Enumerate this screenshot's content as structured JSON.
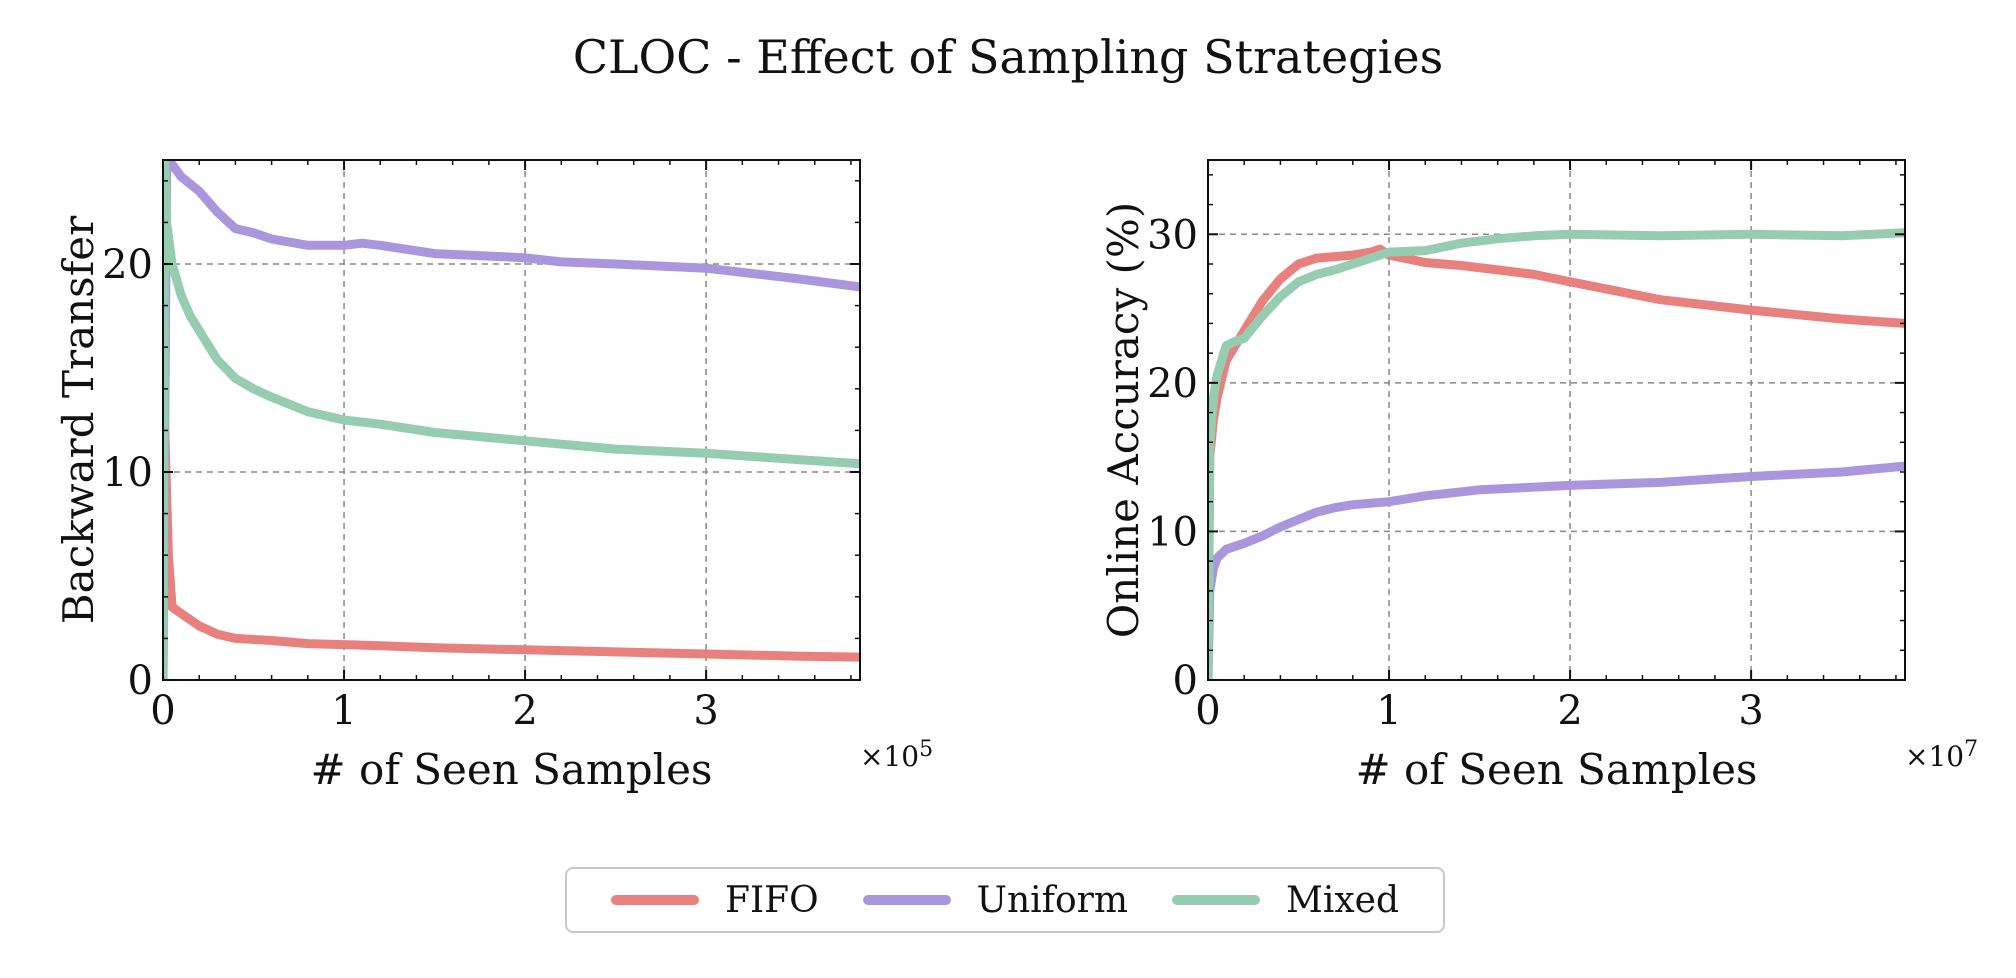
{
  "figure": {
    "title": "CLOC - Effect of Sampling Strategies",
    "legend": [
      {
        "label": "FIFO",
        "color": "#e8807e"
      },
      {
        "label": "Uniform",
        "color": "#a996dc"
      },
      {
        "label": "Mixed",
        "color": "#96cdb0"
      }
    ]
  },
  "chart_data": [
    {
      "type": "line",
      "title": "",
      "xlabel": "# of Seen Samples",
      "ylabel": "Backward Transfer",
      "x_multiplier": "×10^5",
      "x_multiplier_base": "×10",
      "x_multiplier_exp": "5",
      "xlim": [
        0,
        3.85
      ],
      "ylim": [
        0,
        25
      ],
      "xticks": [
        0,
        1,
        2,
        3
      ],
      "yticks": [
        0,
        10,
        20
      ],
      "grid": true,
      "series": [
        {
          "name": "FIFO",
          "color": "#e8807e",
          "x": [
            0,
            0.01,
            0.03,
            0.05,
            0.1,
            0.2,
            0.3,
            0.4,
            0.6,
            0.8,
            1.0,
            1.2,
            1.5,
            2.0,
            2.5,
            3.0,
            3.5,
            3.85
          ],
          "y": [
            0,
            12,
            6,
            3.5,
            3.2,
            2.6,
            2.2,
            2.0,
            1.9,
            1.75,
            1.7,
            1.65,
            1.55,
            1.45,
            1.35,
            1.25,
            1.15,
            1.1
          ]
        },
        {
          "name": "Uniform",
          "color": "#a996dc",
          "x": [
            0,
            0.02,
            0.05,
            0.1,
            0.2,
            0.3,
            0.4,
            0.5,
            0.6,
            0.8,
            1.0,
            1.1,
            1.2,
            1.5,
            2.0,
            2.2,
            2.5,
            3.0,
            3.5,
            3.85
          ],
          "y": [
            0,
            24.5,
            24.8,
            24.2,
            23.5,
            22.5,
            21.7,
            21.5,
            21.2,
            20.9,
            20.9,
            21.0,
            20.9,
            20.5,
            20.3,
            20.1,
            20.0,
            19.8,
            19.3,
            18.9
          ]
        },
        {
          "name": "Mixed",
          "color": "#96cdb0",
          "x": [
            0,
            0.01,
            0.02,
            0.05,
            0.1,
            0.15,
            0.2,
            0.3,
            0.4,
            0.5,
            0.6,
            0.8,
            1.0,
            1.2,
            1.5,
            2.0,
            2.5,
            3.0,
            3.5,
            3.85
          ],
          "y": [
            0,
            25,
            22,
            20,
            18.5,
            17.5,
            16.8,
            15.4,
            14.5,
            14.0,
            13.6,
            12.9,
            12.5,
            12.3,
            11.9,
            11.5,
            11.1,
            10.9,
            10.6,
            10.4
          ]
        }
      ]
    },
    {
      "type": "line",
      "title": "",
      "xlabel": "# of Seen Samples",
      "ylabel": "Online Accuracy (%)",
      "x_multiplier": "×10^7",
      "x_multiplier_base": "×10",
      "x_multiplier_exp": "7",
      "xlim": [
        0,
        3.85
      ],
      "ylim": [
        0,
        35
      ],
      "xticks": [
        0,
        1,
        2,
        3
      ],
      "yticks": [
        0,
        10,
        20,
        30
      ],
      "grid": true,
      "series": [
        {
          "name": "FIFO",
          "color": "#e8807e",
          "x": [
            0,
            0.01,
            0.03,
            0.05,
            0.1,
            0.15,
            0.2,
            0.3,
            0.4,
            0.5,
            0.6,
            0.7,
            0.8,
            0.9,
            0.95,
            1.0,
            1.2,
            1.4,
            1.6,
            1.8,
            2.0,
            2.5,
            3.0,
            3.5,
            3.85
          ],
          "y": [
            0,
            15,
            17.5,
            19,
            21.5,
            22.5,
            23.5,
            25.5,
            27,
            28,
            28.4,
            28.5,
            28.6,
            28.8,
            29,
            28.6,
            28.1,
            27.9,
            27.6,
            27.3,
            26.8,
            25.6,
            24.9,
            24.3,
            24.0
          ]
        },
        {
          "name": "Uniform",
          "color": "#a996dc",
          "x": [
            0,
            0.01,
            0.03,
            0.05,
            0.1,
            0.2,
            0.3,
            0.4,
            0.5,
            0.6,
            0.7,
            0.8,
            1.0,
            1.2,
            1.5,
            2.0,
            2.5,
            3.0,
            3.5,
            3.85
          ],
          "y": [
            0,
            6,
            7.5,
            8.2,
            8.8,
            9.2,
            9.7,
            10.3,
            10.8,
            11.3,
            11.6,
            11.8,
            12.0,
            12.4,
            12.8,
            13.1,
            13.3,
            13.7,
            14.0,
            14.4
          ]
        },
        {
          "name": "Mixed",
          "color": "#96cdb0",
          "x": [
            0,
            0.01,
            0.03,
            0.05,
            0.1,
            0.15,
            0.2,
            0.3,
            0.4,
            0.5,
            0.6,
            0.7,
            0.8,
            0.9,
            1.0,
            1.2,
            1.4,
            1.6,
            1.8,
            2.0,
            2.5,
            3.0,
            3.5,
            3.85
          ],
          "y": [
            0,
            16,
            19,
            20.5,
            22.5,
            22.8,
            23,
            24.5,
            25.8,
            26.8,
            27.3,
            27.6,
            28,
            28.4,
            28.8,
            28.9,
            29.4,
            29.7,
            29.9,
            30.0,
            29.9,
            30.0,
            29.9,
            30.1
          ]
        }
      ]
    }
  ]
}
